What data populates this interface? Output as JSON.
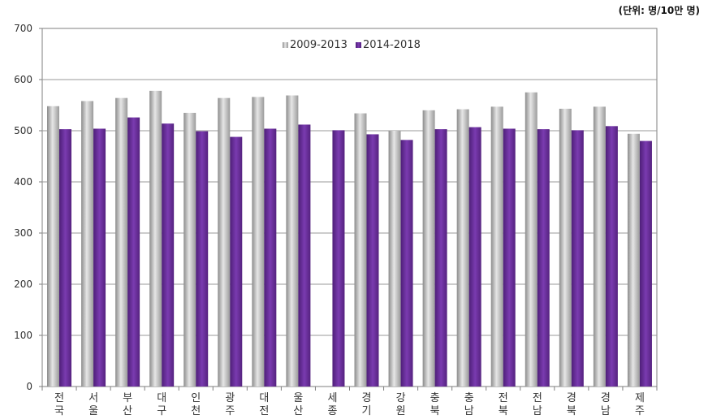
{
  "unit_label": "(단위: 명/10만 명)",
  "chart_data": {
    "type": "bar",
    "title": "",
    "xlabel": "",
    "ylabel": "",
    "ylim": [
      0,
      700
    ],
    "yticks": [
      0,
      100,
      200,
      300,
      400,
      500,
      600,
      700
    ],
    "grid": true,
    "legend_position": "top-center",
    "categories": [
      [
        "전",
        "국"
      ],
      [
        "서",
        "울"
      ],
      [
        "부",
        "산"
      ],
      [
        "대",
        "구"
      ],
      [
        "인",
        "천"
      ],
      [
        "광",
        "주"
      ],
      [
        "대",
        "전"
      ],
      [
        "울",
        "산"
      ],
      [
        "세",
        "종"
      ],
      [
        "경",
        "기"
      ],
      [
        "강",
        "원"
      ],
      [
        "충",
        "북"
      ],
      [
        "충",
        "남"
      ],
      [
        "전",
        "북"
      ],
      [
        "전",
        "남"
      ],
      [
        "경",
        "북"
      ],
      [
        "경",
        "남"
      ],
      [
        "제",
        "주"
      ]
    ],
    "series": [
      {
        "name": "2009-2013",
        "color": "#a8a8a8",
        "values": [
          548,
          558,
          564,
          578,
          535,
          564,
          566,
          569,
          null,
          534,
          500,
          540,
          542,
          547,
          575,
          543,
          547,
          494
        ]
      },
      {
        "name": "2014-2018",
        "color": "#6a2d9a",
        "values": [
          503,
          504,
          526,
          514,
          499,
          488,
          504,
          512,
          501,
          493,
          482,
          503,
          507,
          504,
          503,
          501,
          509,
          480
        ]
      }
    ]
  }
}
